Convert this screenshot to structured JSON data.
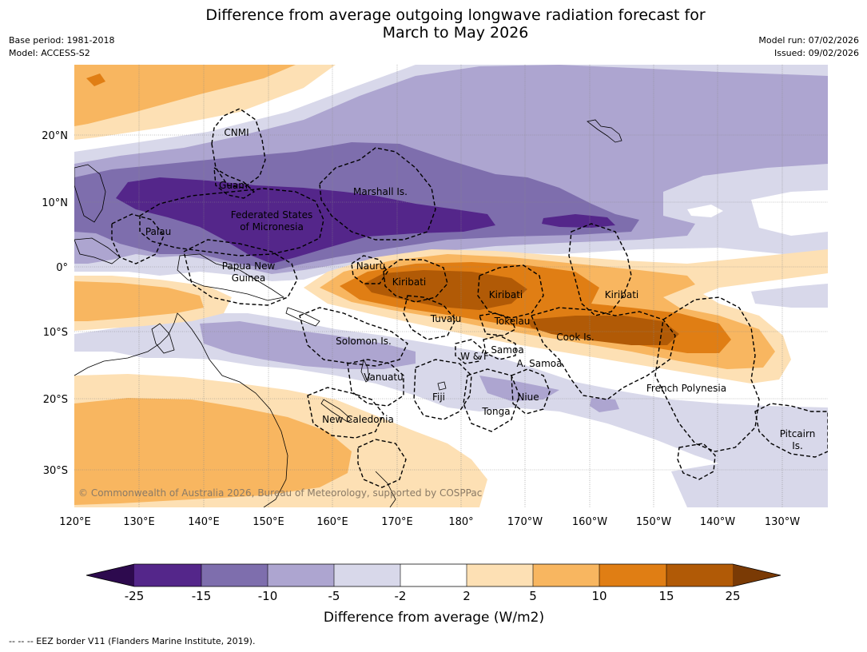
{
  "title_line1": "Difference from average outgoing longwave radiation forecast for",
  "title_line2": "March to May 2026",
  "base_period": "Base period: 1981-2018",
  "model": "Model: ACCESS-S2",
  "model_run": "Model run: 07/02/2026",
  "issued": "Issued: 09/02/2026",
  "copyright": "© Commonwealth of Australia 2026, Bureau of Meteorology, supported by COSPPac",
  "footnote": "--  --  -- EEZ border V11 (Flanders Marine Institute, 2019).",
  "colorbar": {
    "title": "Difference from average (W/m2)",
    "ticks": [
      "-25",
      "-15",
      "-10",
      "-5",
      "-2",
      "2",
      "5",
      "10",
      "15",
      "25"
    ],
    "colors": {
      "lt_-25": "#2d0a4e",
      "-25_-15": "#54268a",
      "-15_-10": "#7e6ead",
      "-10_-5": "#ada5d0",
      "-5_-2": "#d8d8ea",
      "-2_2": "#ffffff",
      "2_5": "#fde0b4",
      "5_10": "#f8b660",
      "10_15": "#e07e14",
      "15_25": "#b15a06",
      "gt_25": "#7a3a05"
    }
  },
  "axes": {
    "lat_ticks": [
      "20°N",
      "10°N",
      "0°",
      "10°S",
      "20°S",
      "30°S"
    ],
    "lon_ticks": [
      "120°E",
      "130°E",
      "140°E",
      "150°E",
      "160°E",
      "170°E",
      "180°",
      "170°W",
      "160°W",
      "150°W",
      "140°W",
      "130°W"
    ]
  },
  "regions": [
    {
      "name": "CNMI"
    },
    {
      "name": "Guam"
    },
    {
      "name": "Marshall Is."
    },
    {
      "name": "Federated States"
    },
    {
      "name": "of Micronesia"
    },
    {
      "name": "Palau"
    },
    {
      "name": "Papua New"
    },
    {
      "name": "Guinea"
    },
    {
      "name": "Nauru"
    },
    {
      "name": "Kiribati"
    },
    {
      "name": "Kiribati"
    },
    {
      "name": "Kiribati"
    },
    {
      "name": "Tuvalu"
    },
    {
      "name": "Tokelau"
    },
    {
      "name": "Cook Is."
    },
    {
      "name": "Solomon Is."
    },
    {
      "name": "W & F"
    },
    {
      "name": "Samoa"
    },
    {
      "name": "A. Samoa"
    },
    {
      "name": "Vanuatu"
    },
    {
      "name": "Fiji"
    },
    {
      "name": "Niue"
    },
    {
      "name": "Tonga"
    },
    {
      "name": "French Polynesia"
    },
    {
      "name": "New Caledonia"
    },
    {
      "name": "Pitcairn"
    },
    {
      "name": "Is."
    }
  ]
}
